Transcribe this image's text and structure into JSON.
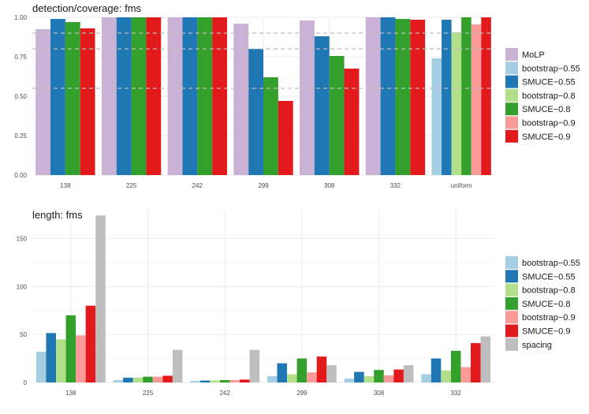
{
  "chart_data": [
    {
      "type": "bar",
      "title": "detection/coverage: fms",
      "categories": [
        "138",
        "225",
        "242",
        "299",
        "308",
        "332",
        "uniform"
      ],
      "ylim": [
        0,
        1
      ],
      "yticks": [
        "0.00",
        "0.25",
        "0.50",
        "0.75",
        "1.00"
      ],
      "reference_lines": [
        0.55,
        0.8,
        0.9
      ],
      "grid": true,
      "legend_position": "right",
      "series": [
        {
          "name": "MoLP",
          "color": "#cab2d6",
          "values": [
            0.925,
            1.0,
            1.0,
            0.96,
            0.98,
            1.0,
            null
          ]
        },
        {
          "name": "bootstrap−0.55",
          "color": "#a6cee3",
          "values": [
            null,
            null,
            null,
            null,
            null,
            null,
            0.74
          ]
        },
        {
          "name": "SMUCE−0.55",
          "color": "#1f78b4",
          "values": [
            0.99,
            1.0,
            1.0,
            0.8,
            0.88,
            1.0,
            0.985
          ]
        },
        {
          "name": "bootstrap−0.8",
          "color": "#b2df8a",
          "values": [
            null,
            null,
            null,
            null,
            null,
            null,
            0.905
          ]
        },
        {
          "name": "SMUCE−0.8",
          "color": "#33a02c",
          "values": [
            0.97,
            1.0,
            1.0,
            0.62,
            0.755,
            0.99,
            1.0
          ]
        },
        {
          "name": "bootstrap−0.9",
          "color": "#fb9a99",
          "values": [
            null,
            null,
            null,
            null,
            null,
            null,
            0.955
          ]
        },
        {
          "name": "SMUCE−0.9",
          "color": "#e31a1c",
          "values": [
            0.93,
            1.0,
            1.0,
            0.47,
            0.675,
            0.985,
            1.0
          ]
        }
      ]
    },
    {
      "type": "bar",
      "title": "length: fms",
      "categories": [
        "138",
        "225",
        "242",
        "299",
        "308",
        "332"
      ],
      "ylim": [
        0,
        180
      ],
      "yticks": [
        "0",
        "50",
        "100",
        "150"
      ],
      "grid": true,
      "legend_position": "right",
      "series": [
        {
          "name": "bootstrap−0.55",
          "color": "#a6cee3",
          "values": [
            32,
            2.5,
            1.5,
            6.5,
            4,
            8.5
          ]
        },
        {
          "name": "SMUCE−0.55",
          "color": "#1f78b4",
          "values": [
            51.5,
            5,
            2,
            20,
            11,
            25
          ]
        },
        {
          "name": "bootstrap−0.8",
          "color": "#b2df8a",
          "values": [
            45,
            5,
            2,
            8.5,
            6.5,
            12.5
          ]
        },
        {
          "name": "SMUCE−0.8",
          "color": "#33a02c",
          "values": [
            70,
            6,
            2.5,
            25,
            13,
            33
          ]
        },
        {
          "name": "bootstrap−0.9",
          "color": "#fb9a99",
          "values": [
            49,
            6,
            2.5,
            10.5,
            7.5,
            16
          ]
        },
        {
          "name": "SMUCE−0.9",
          "color": "#e31a1c",
          "values": [
            80,
            7,
            3,
            27,
            13.5,
            41
          ]
        },
        {
          "name": "spacing",
          "color": "#bebebe",
          "values": [
            174,
            34,
            34,
            18,
            18,
            48
          ]
        }
      ]
    }
  ]
}
